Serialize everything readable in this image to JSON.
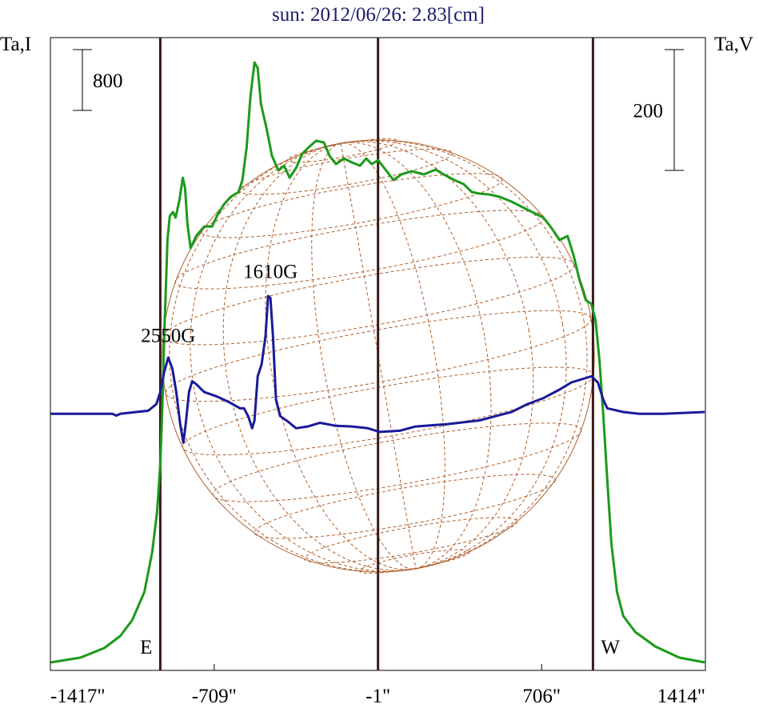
{
  "chart_data": {
    "type": "line",
    "title": "sun: 2012/06/26: 2.83[cm]",
    "y_label": "Ta,I",
    "y2_label": "Ta,V",
    "xlim": [
      -1417,
      1414
    ],
    "xticks": [
      {
        "value": -1417,
        "label": "-1417\""
      },
      {
        "value": -709,
        "label": "-709\""
      },
      {
        "value": -1,
        "label": "-1\""
      },
      {
        "value": 706,
        "label": "706\""
      },
      {
        "value": 1414,
        "label": "1414\""
      }
    ],
    "ylim": [
      0,
      8330
    ],
    "y2lim": [
      -425,
      623
    ],
    "i_scale_bar": 800,
    "v_scale_bar": 200,
    "vertical_lines": [
      {
        "x": -942,
        "label": "E"
      },
      {
        "x": -1
      },
      {
        "x": 928,
        "label": "W"
      }
    ],
    "annotations": [
      {
        "text": "2550G",
        "x": -908,
        "y": 131
      },
      {
        "text": "1610G",
        "x": -466,
        "y": 237
      }
    ],
    "series": [
      {
        "name": "I",
        "color": "#1c9a1c",
        "x": [
          -1415,
          -1287,
          -1184,
          -1115,
          -1063,
          -1011,
          -977,
          -956,
          -942,
          -932,
          -925,
          -918,
          -911,
          -901,
          -887,
          -876,
          -859,
          -845,
          -835,
          -825,
          -811,
          -787,
          -752,
          -718,
          -694,
          -666,
          -638,
          -604,
          -587,
          -569,
          -552,
          -535,
          -521,
          -507,
          -483,
          -459,
          -431,
          -407,
          -383,
          -355,
          -328,
          -304,
          -269,
          -235,
          -210,
          -183,
          -148,
          -114,
          -79,
          -52,
          -28,
          0,
          31,
          66,
          100,
          145,
          197,
          248,
          283,
          328,
          369,
          404,
          438,
          480,
          525,
          576,
          645,
          714,
          749,
          783,
          818,
          845,
          870,
          897,
          921,
          939,
          956,
          973,
          990,
          1008,
          1032,
          1059,
          1111,
          1197,
          1301,
          1411
        ],
        "values": [
          105,
          168,
          295,
          453,
          663,
          1032,
          1558,
          2085,
          2717,
          3559,
          4402,
          5033,
          5665,
          5981,
          6034,
          5960,
          6192,
          6486,
          6350,
          5876,
          5560,
          5718,
          5844,
          5844,
          6002,
          6139,
          6234,
          6297,
          6455,
          6876,
          7561,
          8003,
          7929,
          7455,
          7139,
          6771,
          6581,
          6644,
          6486,
          6613,
          6802,
          6876,
          6971,
          6950,
          6771,
          6665,
          6739,
          6687,
          6644,
          6739,
          6665,
          6718,
          6592,
          6455,
          6529,
          6571,
          6529,
          6592,
          6529,
          6455,
          6402,
          6297,
          6276,
          6265,
          6234,
          6171,
          6065,
          5960,
          5823,
          5665,
          5718,
          5455,
          5139,
          4875,
          4823,
          4612,
          4086,
          3349,
          2506,
          1664,
          1032,
          716,
          505,
          316,
          168,
          105
        ]
      },
      {
        "name": "V",
        "color": "#1a1a99",
        "axis": "y2",
        "x": [
          -1415,
          -1149,
          -1132,
          -1115,
          -1046,
          -994,
          -959,
          -942,
          -925,
          -908,
          -890,
          -873,
          -856,
          -842,
          -832,
          -818,
          -804,
          -787,
          -752,
          -700,
          -649,
          -597,
          -580,
          -562,
          -545,
          -535,
          -521,
          -504,
          -487,
          -476,
          -466,
          -455,
          -442,
          -424,
          -390,
          -355,
          -304,
          -252,
          -183,
          -114,
          -45,
          7,
          93,
          162,
          300,
          438,
          507,
          576,
          645,
          714,
          783,
          835,
          887,
          921,
          949,
          973,
          990,
          1059,
          1128,
          1232,
          1411
        ],
        "values": [
          0,
          0,
          -3,
          0,
          3,
          5,
          16,
          36,
          69,
          93,
          75,
          36,
          -17,
          -48,
          -17,
          36,
          54,
          49,
          36,
          29,
          20,
          9,
          9,
          -4,
          -24,
          -11,
          62,
          82,
          129,
          195,
          192,
          129,
          23,
          -4,
          -13,
          -24,
          -21,
          -15,
          -20,
          -21,
          -24,
          -30,
          -28,
          -21,
          -17,
          -11,
          -4,
          3,
          16,
          26,
          40,
          52,
          58,
          62,
          52,
          23,
          9,
          3,
          0,
          0,
          3
        ]
      }
    ]
  }
}
